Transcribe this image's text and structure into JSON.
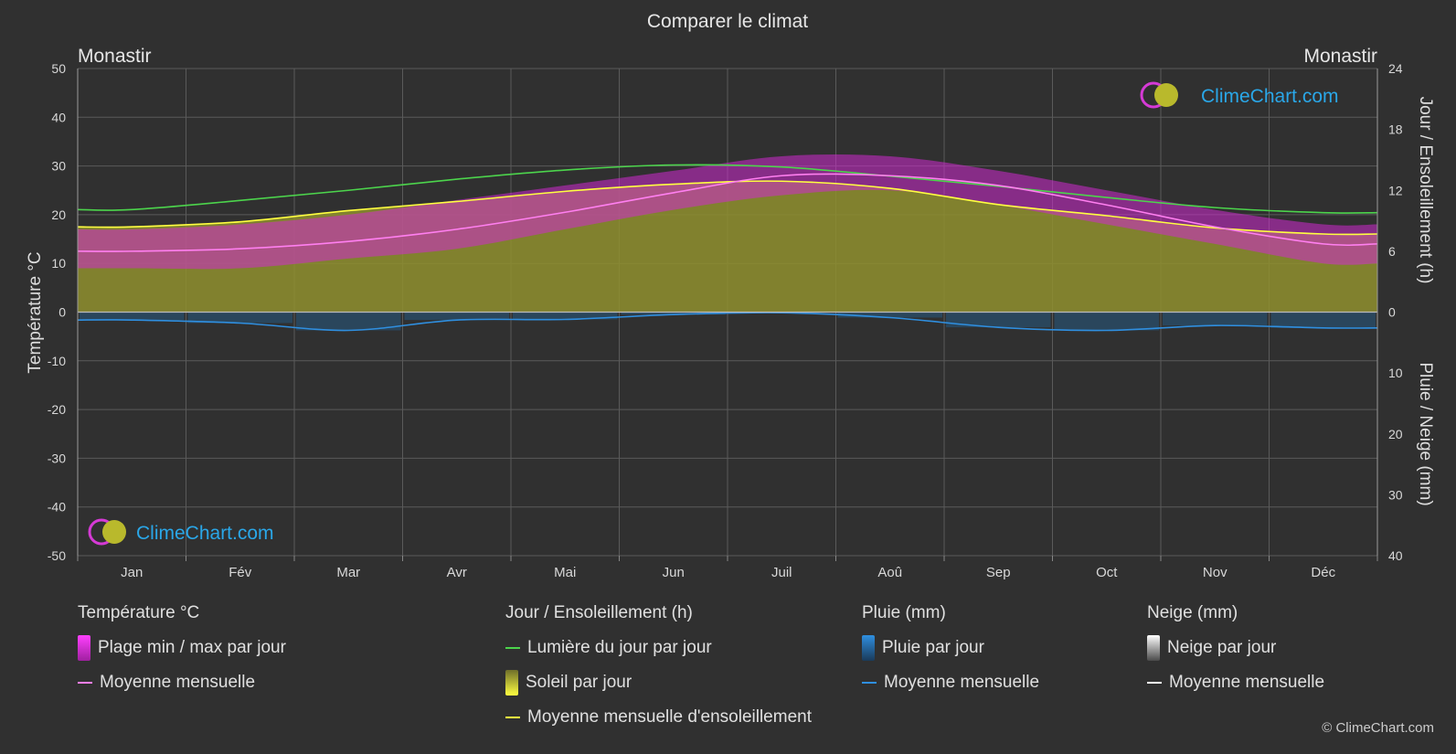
{
  "title": "Comparer le climat",
  "location_left": "Monastir",
  "location_right": "Monastir",
  "axis_left_label": "Température °C",
  "axis_right_top_label": "Jour / Ensoleillement (h)",
  "axis_right_bottom_label": "Pluie / Neige (mm)",
  "watermark": "ClimeChart.com",
  "copyright": "© ClimeChart.com",
  "colors": {
    "background": "#303030",
    "grid": "#5a5a5a",
    "temp_range": "#d02ad0",
    "temp_mean": "#ff7ff0",
    "daylight": "#4cd44c",
    "sunshine_fill": "#8f8f2e",
    "sunshine_mean": "#ffff40",
    "rain": "#1f6fb0",
    "rain_mean": "#2f8fe0",
    "snow_mean": "#ffffff",
    "brand": "#2aa7e8"
  },
  "legend": {
    "temperature": {
      "header": "Température °C",
      "range_label": "Plage min / max par jour",
      "mean_label": "Moyenne mensuelle"
    },
    "sun": {
      "header": "Jour / Ensoleillement (h)",
      "daylight_label": "Lumière du jour par jour",
      "sunshine_label": "Soleil par jour",
      "sunshine_mean_label": "Moyenne mensuelle d'ensoleillement"
    },
    "rain": {
      "header": "Pluie (mm)",
      "rain_label": "Pluie par jour",
      "mean_label": "Moyenne mensuelle"
    },
    "snow": {
      "header": "Neige (mm)",
      "snow_label": "Neige par jour",
      "mean_label": "Moyenne mensuelle"
    }
  },
  "chart_data": {
    "type": "area",
    "categories": [
      "Jan",
      "Fév",
      "Mar",
      "Avr",
      "Mai",
      "Jun",
      "Juil",
      "Aoû",
      "Sep",
      "Oct",
      "Nov",
      "Déc"
    ],
    "y_left": {
      "label": "Température °C",
      "range": [
        -50,
        50
      ],
      "ticks": [
        50,
        40,
        30,
        20,
        10,
        0,
        -10,
        -20,
        -30,
        -40,
        -50
      ]
    },
    "y_right_top": {
      "label": "Jour / Ensoleillement (h)",
      "range": [
        0,
        24
      ],
      "ticks": [
        24,
        18,
        12,
        6,
        0
      ]
    },
    "y_right_bottom": {
      "label": "Pluie / Neige (mm)",
      "range": [
        0,
        40
      ],
      "ticks": [
        0,
        10,
        20,
        30,
        40
      ]
    },
    "grid": true,
    "series": [
      {
        "name": "Plage min / max par jour",
        "kind": "band",
        "axis": "temperature",
        "min": [
          9,
          9,
          11,
          13,
          17,
          21,
          24,
          25,
          22,
          18,
          14,
          10
        ],
        "max": [
          17,
          18,
          20,
          23,
          26,
          29,
          32,
          32,
          29,
          25,
          21,
          18
        ]
      },
      {
        "name": "Moyenne mensuelle",
        "kind": "line",
        "axis": "temperature",
        "values": [
          12.5,
          13,
          14.5,
          17,
          20.5,
          24.5,
          28,
          28,
          26,
          22,
          17.5,
          14
        ]
      },
      {
        "name": "Lumière du jour par jour",
        "kind": "line",
        "axis": "hours",
        "values": [
          10.1,
          11,
          12,
          13.1,
          14,
          14.5,
          14.3,
          13.4,
          12.4,
          11.3,
          10.3,
          9.8
        ]
      },
      {
        "name": "Soleil par jour",
        "kind": "area",
        "axis": "hours",
        "values": [
          8.4,
          8.9,
          10,
          10.9,
          11.9,
          12.6,
          12.9,
          12.2,
          10.6,
          9.5,
          8.3,
          7.7
        ]
      },
      {
        "name": "Moyenne mensuelle d'ensoleillement",
        "kind": "line",
        "axis": "hours",
        "values": [
          8.4,
          8.9,
          10,
          10.9,
          11.9,
          12.6,
          12.9,
          12.2,
          10.6,
          9.5,
          8.3,
          7.7
        ]
      },
      {
        "name": "Pluie par jour",
        "kind": "bars",
        "axis": "precip",
        "values": [
          1.3,
          1.8,
          3.0,
          1.3,
          1.2,
          0.4,
          0.1,
          0.9,
          2.5,
          3.0,
          2.2,
          2.6
        ]
      },
      {
        "name": "Moyenne mensuelle",
        "kind": "line",
        "axis": "precip",
        "values": [
          1.3,
          1.8,
          3.0,
          1.3,
          1.2,
          0.4,
          0.1,
          0.9,
          2.5,
          3.0,
          2.2,
          2.6
        ]
      }
    ]
  }
}
